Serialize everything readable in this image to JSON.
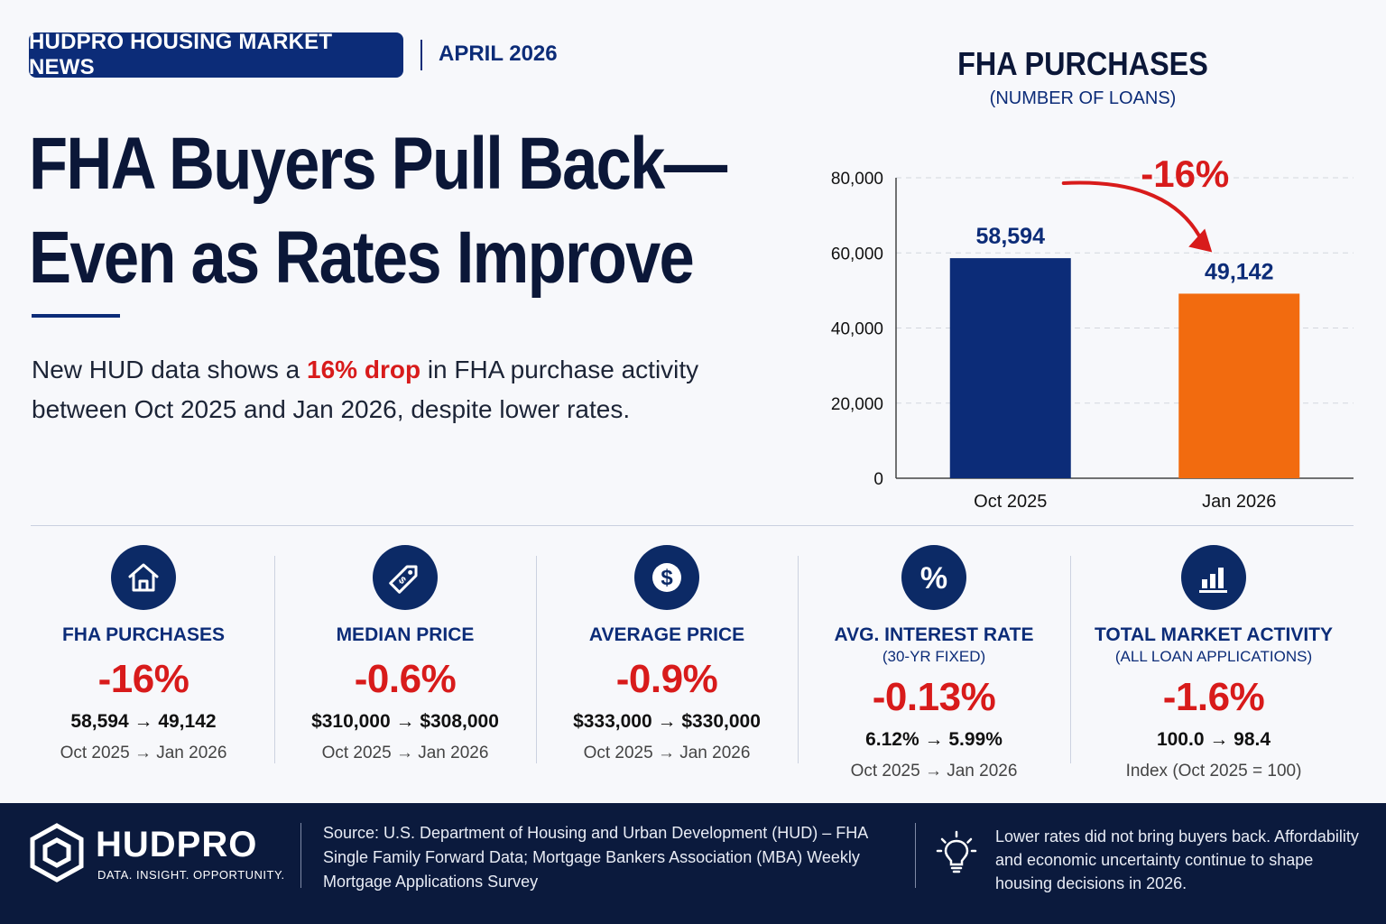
{
  "header": {
    "badge": "HUDPRO HOUSING MARKET NEWS",
    "date": "APRIL 2026"
  },
  "headline": {
    "line1": "FHA Buyers Pull Back—",
    "line2": "Even as Rates Improve"
  },
  "subtext": {
    "before": "New HUD data shows a ",
    "highlight": "16% drop",
    "after": " in FHA purchase activity between Oct 2025 and Jan 2026, despite lower rates."
  },
  "chart_data": {
    "type": "bar",
    "title": "FHA PURCHASES",
    "subtitle": "(NUMBER OF LOANS)",
    "categories": [
      "Oct 2025",
      "Jan 2026"
    ],
    "values": [
      58594,
      49142
    ],
    "value_labels": [
      "58,594",
      "49,142"
    ],
    "bar_colors": [
      "#0c2c78",
      "#f26b0f"
    ],
    "ylim": [
      0,
      80000
    ],
    "yticks": [
      0,
      20000,
      40000,
      60000,
      80000
    ],
    "ytick_labels": [
      "0",
      "20,000",
      "40,000",
      "60,000",
      "80,000"
    ],
    "grid": true,
    "annotation": "-16%",
    "annotation_color": "#d81b1b"
  },
  "stats": [
    {
      "icon": "house-icon",
      "label": "FHA PURCHASES",
      "sublabel": "",
      "change": "-16%",
      "values": "58,594 → 49,142",
      "period": "Oct 2025 → Jan 2026"
    },
    {
      "icon": "price-tag-icon",
      "label": "MEDIAN PRICE",
      "sublabel": "",
      "change": "-0.6%",
      "values": "$310,000 → $308,000",
      "period": "Oct 2025 → Jan 2026"
    },
    {
      "icon": "dollar-icon",
      "label": "AVERAGE PRICE",
      "sublabel": "",
      "change": "-0.9%",
      "values": "$333,000 → $330,000",
      "period": "Oct 2025 → Jan 2026"
    },
    {
      "icon": "percent-icon",
      "label": "AVG. INTEREST RATE",
      "sublabel": "(30-YR FIXED)",
      "change": "-0.13%",
      "values": "6.12% → 5.99%",
      "period": "Oct 2025 → Jan 2026"
    },
    {
      "icon": "bar-chart-icon",
      "label": "TOTAL MARKET ACTIVITY",
      "sublabel": "(ALL LOAN APPLICATIONS)",
      "change": "-1.6%",
      "values": "100.0 → 98.4",
      "period": "Index (Oct 2025 = 100)"
    }
  ],
  "footer": {
    "logo_name": "HUDPRO",
    "logo_tagline": "DATA. INSIGHT. OPPORTUNITY.",
    "source": "Source: U.S. Department of Housing and Urban Development (HUD) – FHA Single Family Forward Data; Mortgage Bankers Association (MBA) Weekly Mortgage Applications Survey",
    "note": "Lower rates did not bring buyers back. Affordability and economic uncertainty continue to shape housing decisions in 2026."
  },
  "colors": {
    "navy": "#0c2c78",
    "dark_navy": "#0b1a3d",
    "red": "#d81b1b",
    "orange": "#f26b0f"
  }
}
